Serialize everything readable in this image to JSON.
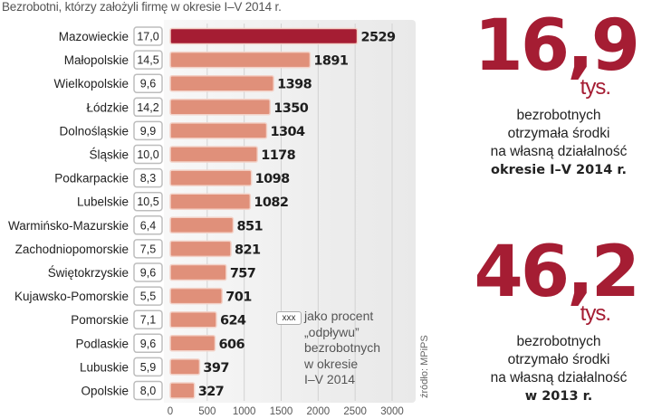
{
  "chart_data": {
    "type": "bar",
    "orientation": "horizontal",
    "title": "Bezrobotni, którzy założyli firmę w okresie I–V 2014 r.",
    "xlabel": "",
    "ylabel": "",
    "xlim": [
      0,
      3000
    ],
    "xticks": [
      0,
      500,
      1000,
      1500,
      2000,
      2500,
      3000
    ],
    "xtick_labels": [
      "0",
      "500",
      "1000",
      "1500",
      "2000",
      "2500",
      "3000"
    ],
    "grid": true,
    "categories": [
      "Mazowieckie",
      "Małopolskie",
      "Wielkopolskie",
      "Łódzkie",
      "Dolnośląskie",
      "Śląskie",
      "Podkarpackie",
      "Lubelskie",
      "Warmińsko-Mazurskie",
      "Zachodniopomorskie",
      "Świętokrzyskie",
      "Kujawsko-Pomorskie",
      "Pomorskie",
      "Podlaskie",
      "Lubuskie",
      "Opolskie"
    ],
    "values": [
      2529,
      1891,
      1398,
      1350,
      1304,
      1178,
      1098,
      1082,
      851,
      821,
      757,
      701,
      624,
      606,
      397,
      327
    ],
    "value_labels": [
      "2529",
      "1891",
      "1398",
      "1350",
      "1304",
      "1178",
      "1098",
      "1082",
      "851",
      "821",
      "757",
      "701",
      "624",
      "606",
      "397",
      "327"
    ],
    "percent_labels": [
      "17,0",
      "14,5",
      "9,6",
      "14,2",
      "9,9",
      "10,0",
      "8,3",
      "10,5",
      "6,4",
      "7,5",
      "9,6",
      "5,5",
      "7,1",
      "9,6",
      "5,9",
      "8,0"
    ],
    "highlight_index": 0,
    "colors": {
      "highlight": "#a51d33",
      "bar": "#e0907a",
      "bar_border": "#f3d2c8"
    },
    "legend": {
      "box_label": "xxx",
      "text_lines": [
        "jako procent",
        "„odpływu”",
        "bezrobotnych",
        "w okresie",
        "I–V 2014"
      ],
      "placement": "bottom-right"
    },
    "source": "źródło: MPiPS"
  },
  "stats": [
    {
      "value": "16,9",
      "unit": "tys.",
      "lines": [
        "bezrobotnych",
        "otrzymała środki",
        "na własną działalność"
      ],
      "bold_line": "okresie I–V 2014 r."
    },
    {
      "value": "46,2",
      "unit": "tys.",
      "lines": [
        "bezrobotnych",
        "otrzymało środki",
        "na własną działalność"
      ],
      "bold_line": "w 2013 r."
    }
  ],
  "colors": {
    "accent": "#a51d33"
  }
}
